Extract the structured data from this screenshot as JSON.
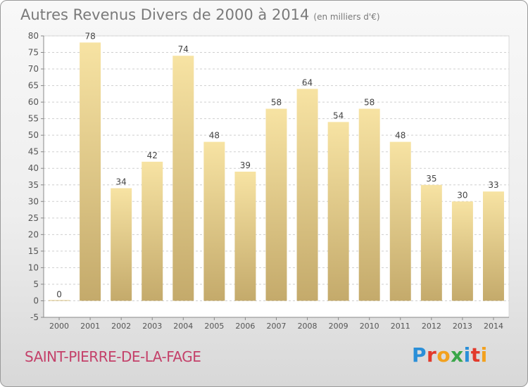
{
  "chart_data": {
    "type": "bar",
    "title": "Autres Revenus Divers de 2000 à 2014",
    "subtitle": "(en milliers d'€)",
    "categories": [
      "2000",
      "2001",
      "2002",
      "2003",
      "2004",
      "2005",
      "2006",
      "2007",
      "2008",
      "2009",
      "2010",
      "2011",
      "2012",
      "2013",
      "2014"
    ],
    "values": [
      0,
      78,
      34,
      42,
      74,
      48,
      39,
      58,
      64,
      54,
      58,
      48,
      35,
      30,
      33
    ],
    "ylim": [
      -5,
      80
    ],
    "yticks": [
      -5,
      0,
      5,
      10,
      15,
      20,
      25,
      30,
      35,
      40,
      45,
      50,
      55,
      60,
      65,
      70,
      75,
      80
    ],
    "grid": true,
    "xlabel": "",
    "ylabel": ""
  },
  "footer": {
    "commune": "SAINT-PIERRE-DE-LA-FAGE",
    "logo": "Proxiti"
  },
  "colors": {
    "bar_top": "#f7e3a3",
    "bar_bottom": "#c4aa6b",
    "commune_text": "#c4416a"
  }
}
